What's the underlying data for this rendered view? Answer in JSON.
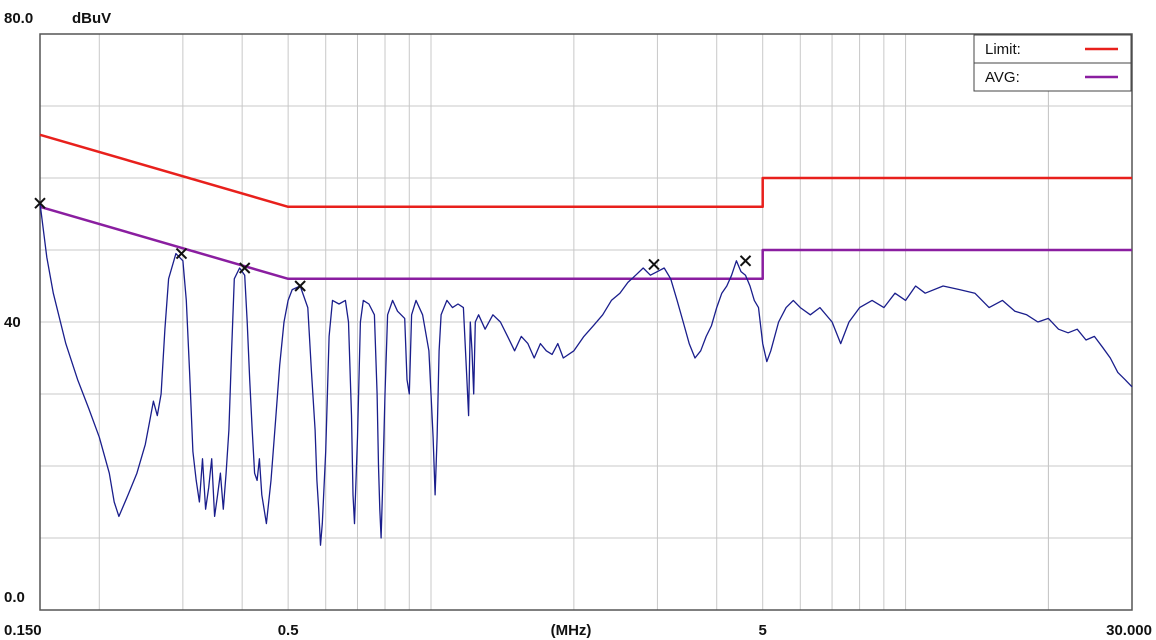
{
  "chart_data": {
    "type": "line",
    "title": "",
    "xlabel": "(MHz)",
    "ylabel": "dBuV",
    "x_scale": "log",
    "xlim": [
      0.15,
      30
    ],
    "ylim": [
      0,
      80
    ],
    "grid": true,
    "legend_position": "top-right",
    "y_tick_labels": [
      "80.0",
      "40",
      "0.0"
    ],
    "x_tick_labels": [
      {
        "value": 0.15,
        "label": "0.150"
      },
      {
        "value": 0.5,
        "label": "0.5"
      },
      {
        "value": 5,
        "label": "5"
      },
      {
        "value": 30,
        "label": "30.000"
      }
    ],
    "legend": [
      {
        "label": "Limit:",
        "color": "#e8201c"
      },
      {
        "label": "AVG:",
        "color": "#8a1ea0"
      }
    ],
    "series": [
      {
        "name": "Limit",
        "color": "#e8201c",
        "points": [
          [
            0.15,
            66
          ],
          [
            0.5,
            56
          ],
          [
            5,
            56
          ],
          [
            5,
            60
          ],
          [
            30,
            60
          ]
        ]
      },
      {
        "name": "AVG",
        "color": "#8a1ea0",
        "points": [
          [
            0.15,
            56
          ],
          [
            0.5,
            46
          ],
          [
            5,
            46
          ],
          [
            5,
            50
          ],
          [
            30,
            50
          ]
        ]
      },
      {
        "name": "",
        "color": "#1a1e8c",
        "points": [
          [
            0.15,
            56.5
          ],
          [
            0.155,
            49
          ],
          [
            0.16,
            44
          ],
          [
            0.17,
            37
          ],
          [
            0.18,
            32
          ],
          [
            0.19,
            28
          ],
          [
            0.2,
            24
          ],
          [
            0.21,
            19
          ],
          [
            0.215,
            15
          ],
          [
            0.22,
            13
          ],
          [
            0.23,
            16
          ],
          [
            0.24,
            19
          ],
          [
            0.25,
            23
          ],
          [
            0.255,
            26
          ],
          [
            0.26,
            29
          ],
          [
            0.265,
            27
          ],
          [
            0.27,
            30
          ],
          [
            0.275,
            39
          ],
          [
            0.28,
            46
          ],
          [
            0.29,
            49.5
          ],
          [
            0.3,
            48.5
          ],
          [
            0.305,
            43
          ],
          [
            0.31,
            33
          ],
          [
            0.315,
            22
          ],
          [
            0.32,
            18
          ],
          [
            0.325,
            15
          ],
          [
            0.33,
            21
          ],
          [
            0.335,
            14
          ],
          [
            0.34,
            17
          ],
          [
            0.345,
            21
          ],
          [
            0.35,
            13
          ],
          [
            0.355,
            16
          ],
          [
            0.36,
            19
          ],
          [
            0.365,
            14
          ],
          [
            0.37,
            19
          ],
          [
            0.375,
            25
          ],
          [
            0.38,
            36
          ],
          [
            0.385,
            46
          ],
          [
            0.395,
            47.5
          ],
          [
            0.405,
            46.5
          ],
          [
            0.41,
            40
          ],
          [
            0.415,
            32
          ],
          [
            0.42,
            25
          ],
          [
            0.425,
            19
          ],
          [
            0.43,
            18
          ],
          [
            0.435,
            21
          ],
          [
            0.44,
            16
          ],
          [
            0.445,
            14
          ],
          [
            0.45,
            12
          ],
          [
            0.46,
            18
          ],
          [
            0.47,
            26
          ],
          [
            0.48,
            34
          ],
          [
            0.49,
            40
          ],
          [
            0.5,
            43
          ],
          [
            0.51,
            44.5
          ],
          [
            0.53,
            45
          ],
          [
            0.55,
            42
          ],
          [
            0.56,
            33
          ],
          [
            0.57,
            25
          ],
          [
            0.575,
            18
          ],
          [
            0.58,
            14
          ],
          [
            0.585,
            9
          ],
          [
            0.59,
            12
          ],
          [
            0.6,
            22
          ],
          [
            0.61,
            38
          ],
          [
            0.62,
            43
          ],
          [
            0.64,
            42.5
          ],
          [
            0.66,
            43
          ],
          [
            0.67,
            40
          ],
          [
            0.68,
            27
          ],
          [
            0.685,
            16
          ],
          [
            0.69,
            12
          ],
          [
            0.7,
            24
          ],
          [
            0.71,
            40
          ],
          [
            0.72,
            43
          ],
          [
            0.74,
            42.5
          ],
          [
            0.76,
            41
          ],
          [
            0.77,
            30
          ],
          [
            0.775,
            20
          ],
          [
            0.78,
            14
          ],
          [
            0.785,
            10
          ],
          [
            0.79,
            16
          ],
          [
            0.8,
            30
          ],
          [
            0.81,
            41
          ],
          [
            0.83,
            43
          ],
          [
            0.85,
            41.5
          ],
          [
            0.88,
            40.5
          ],
          [
            0.89,
            32
          ],
          [
            0.9,
            30
          ],
          [
            0.91,
            41
          ],
          [
            0.93,
            43
          ],
          [
            0.96,
            41
          ],
          [
            0.99,
            36
          ],
          [
            1.01,
            24
          ],
          [
            1.02,
            16
          ],
          [
            1.03,
            24
          ],
          [
            1.04,
            36
          ],
          [
            1.05,
            41
          ],
          [
            1.08,
            43
          ],
          [
            1.11,
            42
          ],
          [
            1.14,
            42.5
          ],
          [
            1.17,
            42
          ],
          [
            1.19,
            32
          ],
          [
            1.2,
            27
          ],
          [
            1.21,
            40
          ],
          [
            1.22,
            36
          ],
          [
            1.23,
            30
          ],
          [
            1.24,
            40
          ],
          [
            1.26,
            41
          ],
          [
            1.3,
            39
          ],
          [
            1.35,
            41
          ],
          [
            1.4,
            40
          ],
          [
            1.45,
            38
          ],
          [
            1.5,
            36
          ],
          [
            1.55,
            38
          ],
          [
            1.6,
            37
          ],
          [
            1.65,
            35
          ],
          [
            1.7,
            37
          ],
          [
            1.75,
            36
          ],
          [
            1.8,
            35.5
          ],
          [
            1.85,
            37
          ],
          [
            1.9,
            35
          ],
          [
            2.0,
            36
          ],
          [
            2.1,
            38
          ],
          [
            2.2,
            39.5
          ],
          [
            2.3,
            41
          ],
          [
            2.4,
            43
          ],
          [
            2.5,
            44
          ],
          [
            2.6,
            45.5
          ],
          [
            2.7,
            46.5
          ],
          [
            2.8,
            47.5
          ],
          [
            2.9,
            46.5
          ],
          [
            3.0,
            47
          ],
          [
            3.1,
            47.5
          ],
          [
            3.2,
            46
          ],
          [
            3.3,
            43
          ],
          [
            3.4,
            40
          ],
          [
            3.5,
            37
          ],
          [
            3.6,
            35
          ],
          [
            3.7,
            36
          ],
          [
            3.8,
            38
          ],
          [
            3.9,
            39.5
          ],
          [
            4.0,
            42
          ],
          [
            4.1,
            44
          ],
          [
            4.2,
            45
          ],
          [
            4.3,
            46.5
          ],
          [
            4.4,
            48.5
          ],
          [
            4.5,
            47
          ],
          [
            4.6,
            46.5
          ],
          [
            4.7,
            45
          ],
          [
            4.8,
            43
          ],
          [
            4.9,
            42
          ],
          [
            5.0,
            37
          ],
          [
            5.1,
            34.5
          ],
          [
            5.2,
            36
          ],
          [
            5.4,
            40
          ],
          [
            5.6,
            42
          ],
          [
            5.8,
            43
          ],
          [
            6.0,
            42
          ],
          [
            6.3,
            41
          ],
          [
            6.6,
            42
          ],
          [
            7.0,
            40
          ],
          [
            7.3,
            37
          ],
          [
            7.6,
            40
          ],
          [
            8.0,
            42
          ],
          [
            8.5,
            43
          ],
          [
            9.0,
            42
          ],
          [
            9.5,
            44
          ],
          [
            10.0,
            43
          ],
          [
            10.5,
            45
          ],
          [
            11.0,
            44
          ],
          [
            12.0,
            45
          ],
          [
            13.0,
            44.5
          ],
          [
            14.0,
            44
          ],
          [
            15.0,
            42
          ],
          [
            16.0,
            43
          ],
          [
            17.0,
            41.5
          ],
          [
            18.0,
            41
          ],
          [
            19.0,
            40
          ],
          [
            20.0,
            40.5
          ],
          [
            21.0,
            39
          ],
          [
            22.0,
            38.5
          ],
          [
            23.0,
            39
          ],
          [
            24.0,
            37.5
          ],
          [
            25.0,
            38
          ],
          [
            26.0,
            36.5
          ],
          [
            27.0,
            35
          ],
          [
            28.0,
            33
          ],
          [
            29.0,
            32
          ],
          [
            30.0,
            31
          ]
        ]
      }
    ],
    "markers": [
      {
        "x": 0.15,
        "y": 56.5
      },
      {
        "x": 0.298,
        "y": 49.5
      },
      {
        "x": 0.405,
        "y": 47.5
      },
      {
        "x": 0.53,
        "y": 45
      },
      {
        "x": 2.95,
        "y": 48
      },
      {
        "x": 4.6,
        "y": 48.5
      }
    ]
  }
}
